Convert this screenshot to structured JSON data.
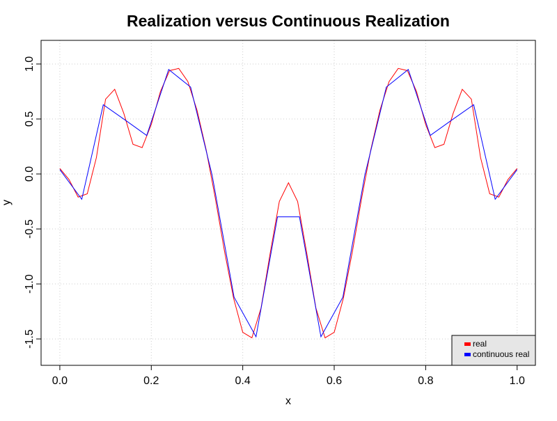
{
  "chart_data": {
    "type": "line",
    "title": "Realization versus Continuous Realization",
    "x_label": "x",
    "y_label": "y",
    "xlim": [
      -0.041,
      1.04
    ],
    "ylim": [
      -1.74,
      1.215
    ],
    "xticks": [
      {
        "value": 0,
        "label": "0.0"
      },
      0.2,
      0.4,
      0.6,
      0.8,
      {
        "value": 1,
        "label": "1.0"
      }
    ],
    "yticks": [
      {
        "value": -1.5,
        "label": "-1.5"
      },
      {
        "value": -1,
        "label": "-1.0"
      },
      {
        "value": -0.5,
        "label": "-0.5"
      },
      {
        "value": 0,
        "label": "0.0"
      },
      0.5,
      {
        "value": 1,
        "label": "1.0"
      }
    ],
    "grid": true,
    "legend": "bottom-right",
    "series": [
      {
        "name": "real",
        "color": "#ff0000",
        "x": [
          0,
          0.02,
          0.04,
          0.06,
          0.08,
          0.1,
          0.12,
          0.14,
          0.16,
          0.18,
          0.2,
          0.22,
          0.24,
          0.26,
          0.28,
          0.3,
          0.32,
          0.34,
          0.36,
          0.38,
          0.4,
          0.42,
          0.44,
          0.46,
          0.48,
          0.5,
          0.52,
          0.54,
          0.56,
          0.58,
          0.6,
          0.62,
          0.64,
          0.66,
          0.68,
          0.7,
          0.72,
          0.74,
          0.76,
          0.78,
          0.8,
          0.82,
          0.84,
          0.86,
          0.88,
          0.9,
          0.92,
          0.94,
          0.96,
          0.98,
          1
        ],
        "values": [
          0.05,
          -0.05,
          -0.21,
          -0.18,
          0.15,
          0.68,
          0.77,
          0.55,
          0.27,
          0.24,
          0.45,
          0.75,
          0.94,
          0.96,
          0.84,
          0.58,
          0.22,
          -0.22,
          -0.7,
          -1.13,
          -1.44,
          -1.49,
          -1.22,
          -0.72,
          -0.25,
          -0.08,
          -0.25,
          -0.72,
          -1.22,
          -1.49,
          -1.44,
          -1.13,
          -0.7,
          -0.22,
          0.22,
          0.58,
          0.84,
          0.96,
          0.94,
          0.75,
          0.45,
          0.24,
          0.27,
          0.55,
          0.77,
          0.68,
          0.15,
          -0.18,
          -0.21,
          -0.05,
          0.05
        ]
      },
      {
        "name": "continuous real",
        "color": "#0000ff",
        "x": [
          0,
          0.048,
          0.095,
          0.143,
          0.19,
          0.238,
          0.286,
          0.333,
          0.381,
          0.429,
          0.476,
          0.524,
          0.571,
          0.619,
          0.667,
          0.714,
          0.762,
          0.81,
          0.857,
          0.905,
          0.952,
          1
        ],
        "values": [
          0.04,
          -0.23,
          0.63,
          0.49,
          0.35,
          0.95,
          0.79,
          -0.01,
          -1.12,
          -1.48,
          -0.39,
          -0.39,
          -1.48,
          -1.12,
          -0.01,
          0.79,
          0.95,
          0.35,
          0.49,
          0.63,
          -0.23,
          0.04
        ]
      }
    ]
  }
}
